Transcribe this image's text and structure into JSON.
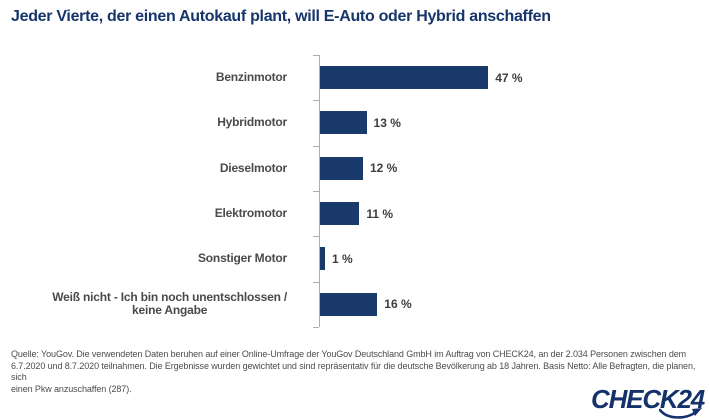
{
  "title": "Jeder Vierte, der einen Autokauf plant, will E-Auto oder Hybrid anschaffen",
  "chart_data": {
    "type": "bar",
    "orientation": "horizontal",
    "title": "Jeder Vierte, der einen Autokauf plant, will E-Auto oder Hybrid anschaffen",
    "categories": [
      "Benzinmotor",
      "Hybridmotor",
      "Dieselmotor",
      "Elektromotor",
      "Sonstiger Motor",
      "Weiß nicht - Ich bin noch unentschlossen /\nkeine Angabe"
    ],
    "values": [
      47,
      13,
      12,
      11,
      1,
      16
    ],
    "value_labels": [
      "47 %",
      "13 %",
      "12 %",
      "11 %",
      "1 %",
      "16 %"
    ],
    "unit": "%",
    "xlim": [
      0,
      50
    ],
    "grid": false,
    "legend": false,
    "bar_color": "#1A3A6B",
    "axis_color": "#ADADAD"
  },
  "footer": {
    "source_lines": [
      "Quelle: YouGov. Die verwendeten Daten beruhen auf einer Online-Umfrage der YouGov Deutschland GmbH im Auftrag von CHECK24, an der 2.034 Personen zwischen dem",
      "6.7.2020 und 8.7.2020 teilnahmen. Die Ergebnisse wurden gewichtet und sind repräsentativ für die deutsche Bevölkerung ab 18 Jahren. Basis Netto: Alle Befragten, die planen, sich",
      "einen Pkw anzuschaffen (287)."
    ],
    "logo_text": "CHECK24"
  },
  "colors": {
    "title": "#16356B",
    "category_label": "#4A4A4C",
    "value_label": "#3E3E40",
    "footer_text": "#4C4C4E",
    "logo": "#15316B"
  }
}
